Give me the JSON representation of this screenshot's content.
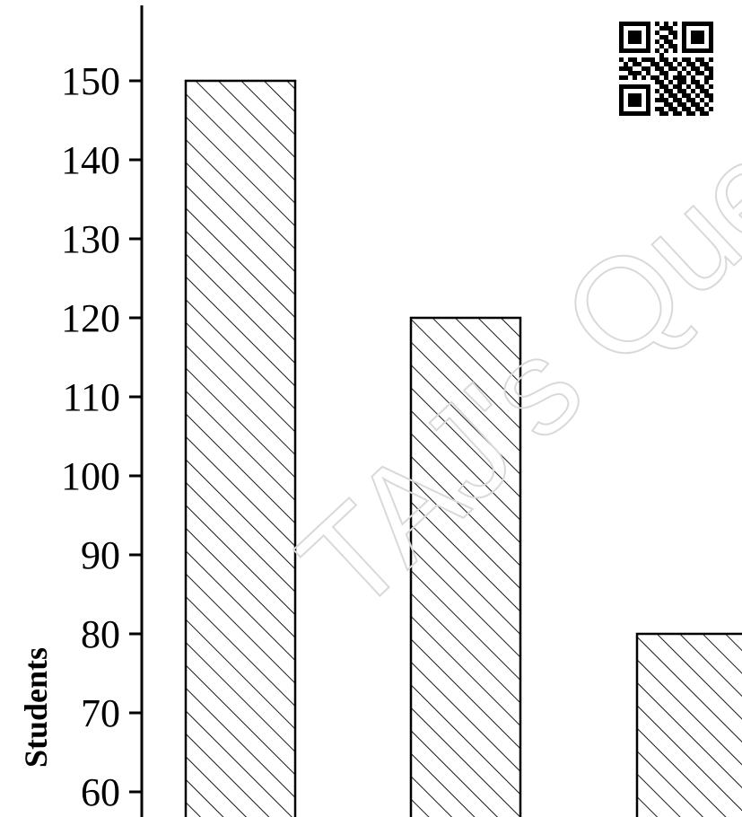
{
  "chart_data": {
    "type": "bar",
    "categories": [
      "",
      "",
      ""
    ],
    "values": [
      150,
      120,
      80
    ],
    "ylabel": "Students",
    "xlabel": "",
    "yticks": [
      60,
      70,
      80,
      90,
      100,
      110,
      120,
      130,
      140,
      150
    ],
    "ylim": [
      56,
      160
    ],
    "grid": false,
    "legend": "none",
    "bar_fill": "hatched",
    "bar_pattern": "diagonal-lines",
    "colors": {
      "bar_stroke": "#000000",
      "hatch": "#000000",
      "axis": "#000000",
      "background": "#ffffff"
    }
  },
  "watermark": {
    "text": "TAJ's Questio",
    "color": "#d9d9d9"
  },
  "qr_code": {
    "icon": "qr-code-icon"
  }
}
